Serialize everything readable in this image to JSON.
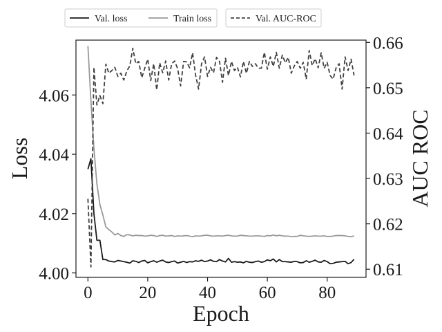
{
  "chart_data": {
    "type": "line",
    "xlabel": "Epoch",
    "ylabel": "Loss",
    "y2label": "AUC ROC",
    "xlim": [
      -4,
      93
    ],
    "ylim": [
      3.9985,
      4.0785
    ],
    "y2lim": [
      0.6082,
      0.6605
    ],
    "xticks": [
      0,
      20,
      40,
      60,
      80
    ],
    "yticks": [
      4.0,
      4.02,
      4.04,
      4.06
    ],
    "y2ticks": [
      0.61,
      0.62,
      0.63,
      0.64,
      0.65,
      0.66
    ],
    "legend": {
      "placement": "above plot, outside",
      "groups": [
        [
          "Val. loss",
          "Train loss"
        ],
        [
          "Val. AUC-ROC"
        ]
      ]
    },
    "series": [
      {
        "name": "Val. loss",
        "axis": "left",
        "color": "#1a1a1a",
        "dash": "solid",
        "x": [
          0,
          1,
          2,
          3,
          4,
          5,
          6,
          7,
          8,
          9,
          10,
          11,
          12,
          13,
          14,
          15,
          16,
          17,
          18,
          19,
          20,
          21,
          22,
          23,
          24,
          25,
          26,
          27,
          28,
          29,
          30,
          31,
          32,
          33,
          34,
          35,
          36,
          37,
          38,
          39,
          40,
          41,
          42,
          43,
          44,
          45,
          46,
          47,
          48,
          49,
          50,
          51,
          52,
          53,
          54,
          55,
          56,
          57,
          58,
          59,
          60,
          61,
          62,
          63,
          64,
          65,
          66,
          67,
          68,
          69,
          70,
          71,
          72,
          73,
          74,
          75,
          76,
          77,
          78,
          79,
          80,
          81,
          82,
          83,
          84,
          85,
          86,
          87,
          88,
          89
        ],
        "y": [
          4.035,
          4.0385,
          4.02,
          4.011,
          4.011,
          4.0045,
          4.0045,
          4.004,
          4.0038,
          4.0037,
          4.0042,
          4.004,
          4.0038,
          4.0036,
          4.0033,
          4.0041,
          4.0039,
          4.0035,
          4.004,
          4.0042,
          4.0034,
          4.0038,
          4.0041,
          4.0036,
          4.004,
          4.0043,
          4.0037,
          4.0035,
          4.0038,
          4.004,
          4.0033,
          4.0036,
          4.0039,
          4.0035,
          4.0038,
          4.0037,
          4.0041,
          4.0039,
          4.0043,
          4.0038,
          4.004,
          4.0044,
          4.0039,
          4.0038,
          4.0045,
          4.004,
          4.0037,
          4.0049,
          4.0036,
          4.0038,
          4.0036,
          4.0037,
          4.0034,
          4.0039,
          4.0036,
          4.0035,
          4.0038,
          4.004,
          4.0036,
          4.0038,
          4.0044,
          4.0041,
          4.0047,
          4.0037,
          4.0045,
          4.0038,
          4.0038,
          4.0037,
          4.0036,
          4.0039,
          4.0038,
          4.0034,
          4.0035,
          4.0041,
          4.0036,
          4.0039,
          4.0043,
          4.0037,
          4.0036,
          4.0042,
          4.0038,
          4.0031,
          4.0032,
          4.0036,
          4.0037,
          4.0038,
          4.0039,
          4.0031,
          4.0035,
          4.0046
        ]
      },
      {
        "name": "Train loss",
        "axis": "left",
        "color": "#999999",
        "dash": "solid",
        "x": [
          0,
          1,
          2,
          3,
          4,
          5,
          6,
          7,
          8,
          9,
          10,
          11,
          12,
          13,
          14,
          15,
          16,
          17,
          18,
          19,
          20,
          21,
          22,
          23,
          24,
          25,
          26,
          27,
          28,
          29,
          30,
          31,
          32,
          33,
          34,
          35,
          36,
          37,
          38,
          39,
          40,
          41,
          42,
          43,
          44,
          45,
          46,
          47,
          48,
          49,
          50,
          51,
          52,
          53,
          54,
          55,
          56,
          57,
          58,
          59,
          60,
          61,
          62,
          63,
          64,
          65,
          66,
          67,
          68,
          69,
          70,
          71,
          72,
          73,
          74,
          75,
          76,
          77,
          78,
          79,
          80,
          81,
          82,
          83,
          84,
          85,
          86,
          87,
          88,
          89
        ],
        "y": [
          4.0765,
          4.058,
          4.042,
          4.03,
          4.0231,
          4.0195,
          4.0155,
          4.0146,
          4.0138,
          4.0128,
          4.0133,
          4.0126,
          4.0123,
          4.0129,
          4.0128,
          4.0125,
          4.0127,
          4.0126,
          4.0126,
          4.0124,
          4.0125,
          4.0127,
          4.0126,
          4.0123,
          4.0126,
          4.0127,
          4.0124,
          4.0125,
          4.0126,
          4.0123,
          4.0125,
          4.0124,
          4.0125,
          4.0126,
          4.0124,
          4.0122,
          4.0125,
          4.0124,
          4.0125,
          4.0127,
          4.0127,
          4.0125,
          4.0124,
          4.0125,
          4.0125,
          4.0124,
          4.0126,
          4.0127,
          4.0125,
          4.0124,
          4.0124,
          4.0127,
          4.0126,
          4.0125,
          4.0124,
          4.0124,
          4.0125,
          4.0125,
          4.0124,
          4.0123,
          4.0126,
          4.0125,
          4.0128,
          4.0125,
          4.0127,
          4.0125,
          4.0124,
          4.0124,
          4.0122,
          4.0123,
          4.0123,
          4.0127,
          4.0125,
          4.0124,
          4.0123,
          4.0124,
          4.0125,
          4.0124,
          4.0124,
          4.0125,
          4.0123,
          4.0123,
          4.0124,
          4.0126,
          4.0126,
          4.0126,
          4.0125,
          4.0123,
          4.0122,
          4.0125
        ]
      },
      {
        "name": "Val. AUC-ROC",
        "axis": "right",
        "color": "#404040",
        "dash": "dashed",
        "x": [
          0,
          1,
          2,
          3,
          4,
          5,
          6,
          7,
          8,
          9,
          10,
          11,
          12,
          13,
          14,
          15,
          16,
          17,
          18,
          19,
          20,
          21,
          22,
          23,
          24,
          25,
          26,
          27,
          28,
          29,
          30,
          31,
          32,
          33,
          34,
          35,
          36,
          37,
          38,
          39,
          40,
          41,
          42,
          43,
          44,
          45,
          46,
          47,
          48,
          49,
          50,
          51,
          52,
          53,
          54,
          55,
          56,
          57,
          58,
          59,
          60,
          61,
          62,
          63,
          64,
          65,
          66,
          67,
          68,
          69,
          70,
          71,
          72,
          73,
          74,
          75,
          76,
          77,
          78,
          79,
          80,
          81,
          82,
          83,
          84,
          85,
          86,
          87,
          88,
          89
        ],
        "y": [
          0.6255,
          0.6105,
          0.6545,
          0.6462,
          0.6483,
          0.6465,
          0.6552,
          0.6532,
          0.6538,
          0.6545,
          0.6525,
          0.6532,
          0.6517,
          0.6537,
          0.6548,
          0.6587,
          0.6553,
          0.6558,
          0.6522,
          0.6543,
          0.6563,
          0.6516,
          0.6553,
          0.6495,
          0.6555,
          0.6533,
          0.6559,
          0.6517,
          0.6553,
          0.6559,
          0.6542,
          0.6504,
          0.6558,
          0.6557,
          0.6544,
          0.6577,
          0.6528,
          0.6497,
          0.6553,
          0.6568,
          0.6525,
          0.6545,
          0.6533,
          0.6567,
          0.6558,
          0.6512,
          0.6565,
          0.6527,
          0.6558,
          0.6538,
          0.6545,
          0.6524,
          0.6558,
          0.6532,
          0.6558,
          0.6547,
          0.6553,
          0.6543,
          0.6543,
          0.6578,
          0.6541,
          0.6568,
          0.6547,
          0.6578,
          0.6543,
          0.6572,
          0.6555,
          0.6567,
          0.6532,
          0.6548,
          0.6558,
          0.6543,
          0.6556,
          0.6519,
          0.6582,
          0.6549,
          0.6564,
          0.6544,
          0.6577,
          0.6543,
          0.6556,
          0.6527,
          0.6519,
          0.6544,
          0.6553,
          0.6497,
          0.6568,
          0.6538,
          0.6563,
          0.6527
        ]
      }
    ]
  }
}
